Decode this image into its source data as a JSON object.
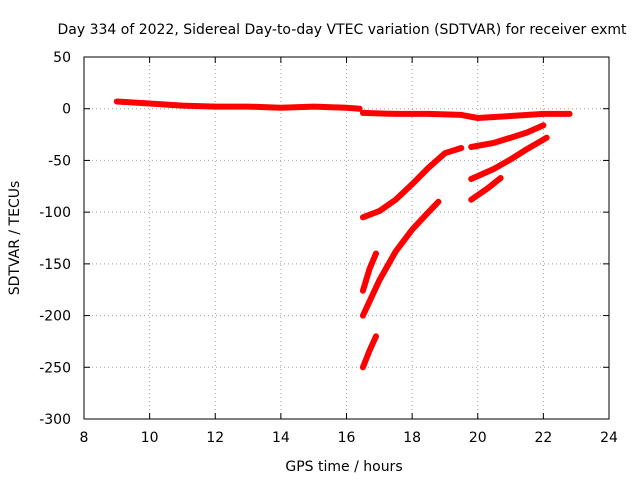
{
  "chart_data": {
    "type": "line",
    "title": "Day 334 of 2022, Sidereal Day-to-day VTEC variation (SDTVAR) for receiver exmt",
    "xlabel": "GPS time / hours",
    "ylabel": "SDTVAR / TECUs",
    "xlim": [
      8,
      24
    ],
    "ylim": [
      -300,
      50
    ],
    "xticks": [
      8,
      10,
      12,
      14,
      16,
      18,
      20,
      22,
      24
    ],
    "yticks": [
      50,
      0,
      -50,
      -100,
      -150,
      -200,
      -250,
      -300
    ],
    "grid": true,
    "color": "#ff0000",
    "series": [
      {
        "name": "track-1",
        "x": [
          9.0,
          10.0,
          11.0,
          12.0,
          13.0,
          14.0,
          15.0,
          16.0,
          16.4
        ],
        "y": [
          7,
          5,
          3,
          2,
          2,
          1,
          2,
          1,
          0
        ]
      },
      {
        "name": "track-2",
        "x": [
          16.5,
          17.5,
          18.5,
          19.5,
          20.0,
          21.0,
          22.0,
          22.8
        ],
        "y": [
          -4,
          -5,
          -5,
          -6,
          -9,
          -7,
          -5,
          -5
        ]
      },
      {
        "name": "track-3",
        "x": [
          16.5,
          17.0,
          17.5,
          18.0,
          18.5,
          19.0,
          19.5
        ],
        "y": [
          -105,
          -99,
          -88,
          -73,
          -57,
          -43,
          -38
        ]
      },
      {
        "name": "track-4",
        "x": [
          19.8,
          20.5,
          21.0,
          21.5,
          22.0
        ],
        "y": [
          -37,
          -33,
          -28,
          -23,
          -16
        ]
      },
      {
        "name": "track-5",
        "x": [
          19.8,
          20.5,
          21.0,
          21.5,
          22.1
        ],
        "y": [
          -68,
          -58,
          -49,
          -39,
          -28
        ]
      },
      {
        "name": "track-6",
        "x": [
          19.8,
          20.3,
          20.7
        ],
        "y": [
          -88,
          -77,
          -67
        ]
      },
      {
        "name": "track-7",
        "x": [
          16.5,
          17.0,
          17.5,
          18.0,
          18.5,
          18.8
        ],
        "y": [
          -200,
          -166,
          -138,
          -117,
          -100,
          -90
        ]
      },
      {
        "name": "track-8",
        "x": [
          16.5,
          16.7,
          16.9
        ],
        "y": [
          -176,
          -155,
          -140
        ]
      },
      {
        "name": "track-9",
        "x": [
          16.5,
          16.7,
          16.9
        ],
        "y": [
          -250,
          -234,
          -220
        ]
      }
    ]
  }
}
